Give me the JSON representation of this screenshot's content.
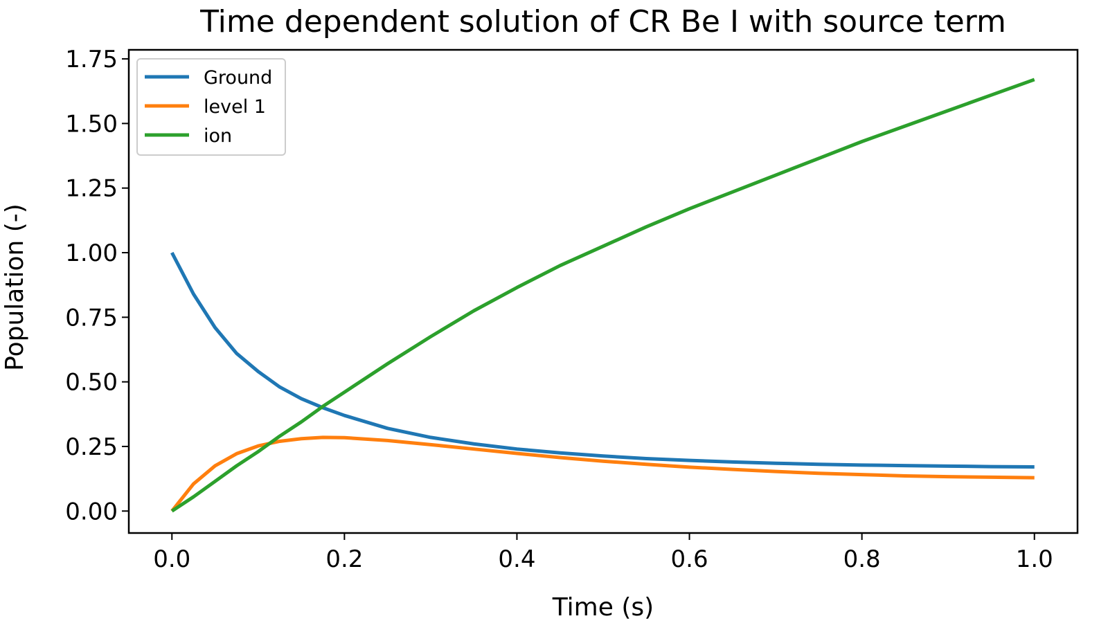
{
  "chart_data": {
    "type": "line",
    "title": "Time dependent solution of CR Be I with source term",
    "xlabel": "Time (s)",
    "ylabel": "Population (-)",
    "xlim": [
      -0.05,
      1.05
    ],
    "ylim": [
      -0.085,
      1.785
    ],
    "xticks": [
      0.0,
      0.2,
      0.4,
      0.6,
      0.8,
      1.0
    ],
    "xtick_labels": [
      "0.0",
      "0.2",
      "0.4",
      "0.6",
      "0.8",
      "1.0"
    ],
    "yticks": [
      0.0,
      0.25,
      0.5,
      0.75,
      1.0,
      1.25,
      1.5,
      1.75
    ],
    "ytick_labels": [
      "0.00",
      "0.25",
      "0.50",
      "0.75",
      "1.00",
      "1.25",
      "1.50",
      "1.75"
    ],
    "grid": false,
    "legend_position": "top-left",
    "x": [
      0.0,
      0.025,
      0.05,
      0.075,
      0.1,
      0.125,
      0.15,
      0.175,
      0.2,
      0.25,
      0.3,
      0.35,
      0.4,
      0.45,
      0.5,
      0.55,
      0.6,
      0.65,
      0.7,
      0.75,
      0.8,
      0.85,
      0.9,
      0.95,
      1.0
    ],
    "series": [
      {
        "name": "Ground",
        "color": "#1f77b4",
        "values": [
          1.0,
          0.84,
          0.71,
          0.61,
          0.54,
          0.48,
          0.435,
          0.4,
          0.37,
          0.32,
          0.285,
          0.26,
          0.24,
          0.225,
          0.213,
          0.203,
          0.196,
          0.19,
          0.185,
          0.181,
          0.178,
          0.176,
          0.174,
          0.172,
          0.171
        ]
      },
      {
        "name": "level 1",
        "color": "#ff7f0e",
        "values": [
          0.0,
          0.105,
          0.175,
          0.222,
          0.252,
          0.27,
          0.28,
          0.285,
          0.284,
          0.273,
          0.257,
          0.24,
          0.223,
          0.207,
          0.193,
          0.181,
          0.17,
          0.161,
          0.153,
          0.146,
          0.141,
          0.136,
          0.133,
          0.131,
          0.129
        ]
      },
      {
        "name": "ion",
        "color": "#2ca02c",
        "values": [
          0.0,
          0.055,
          0.115,
          0.175,
          0.23,
          0.29,
          0.345,
          0.405,
          0.46,
          0.57,
          0.675,
          0.775,
          0.865,
          0.95,
          1.025,
          1.1,
          1.17,
          1.235,
          1.3,
          1.365,
          1.43,
          1.49,
          1.55,
          1.61,
          1.67
        ]
      }
    ]
  }
}
